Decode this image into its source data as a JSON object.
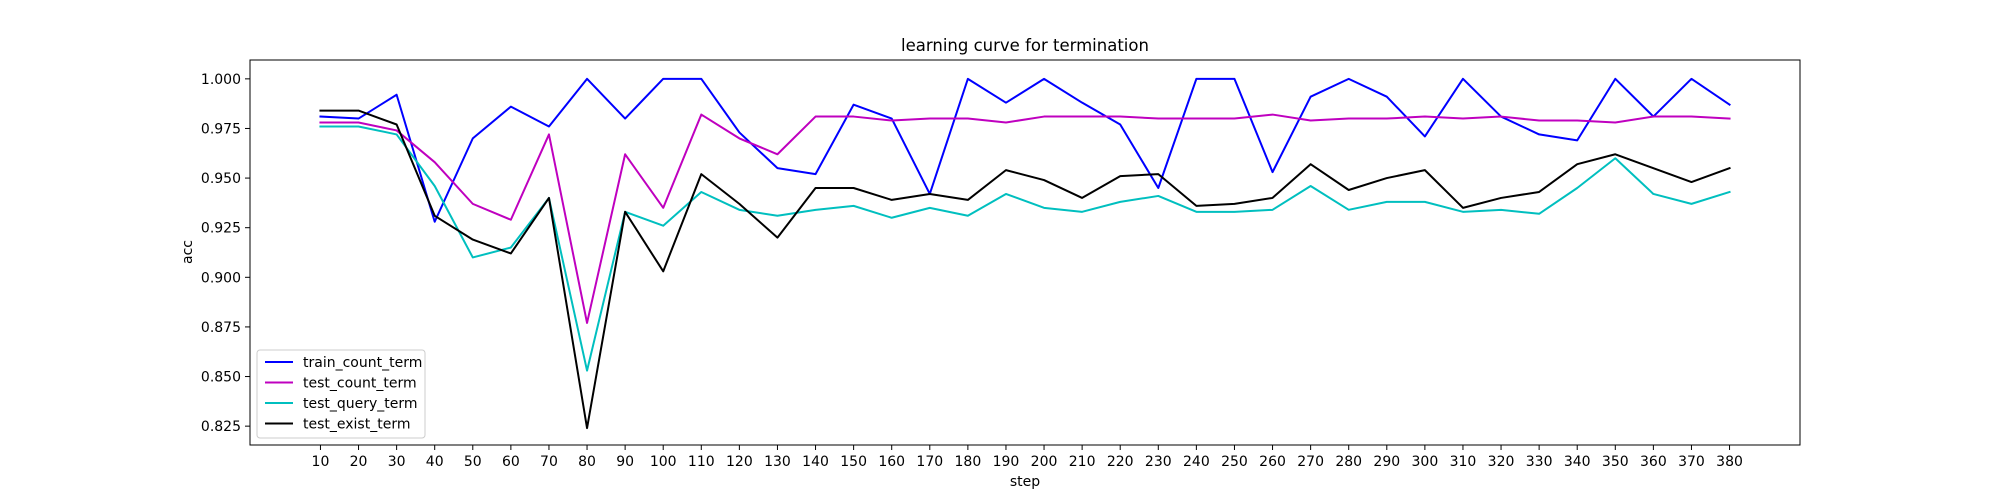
{
  "chart_data": {
    "type": "line",
    "title": "learning curve for termination",
    "xlabel": "step",
    "ylabel": "acc",
    "x": [
      10,
      20,
      30,
      40,
      50,
      60,
      70,
      80,
      90,
      100,
      110,
      120,
      130,
      140,
      150,
      160,
      170,
      180,
      190,
      200,
      210,
      220,
      230,
      240,
      250,
      260,
      270,
      280,
      290,
      300,
      310,
      320,
      330,
      340,
      350,
      360,
      370,
      380
    ],
    "xlim": [
      -8.5,
      398.5
    ],
    "ylim": [
      0.8155,
      1.0095
    ],
    "yticks": [
      0.825,
      0.85,
      0.875,
      0.9,
      0.925,
      0.95,
      0.975,
      1.0
    ],
    "ytick_labels": [
      "0.825",
      "0.850",
      "0.875",
      "0.900",
      "0.925",
      "0.950",
      "0.975",
      "1.000"
    ],
    "legend_position": "lower-left",
    "grid": false,
    "series": [
      {
        "name": "train_count_term",
        "color": "#0000ff",
        "values": [
          0.981,
          0.98,
          0.992,
          0.928,
          0.97,
          0.986,
          0.976,
          1.0,
          0.98,
          1.0,
          1.0,
          0.973,
          0.955,
          0.952,
          0.987,
          0.98,
          0.942,
          1.0,
          0.988,
          1.0,
          0.988,
          0.977,
          0.945,
          1.0,
          1.0,
          0.953,
          0.991,
          1.0,
          0.991,
          0.971,
          1.0,
          0.981,
          0.972,
          0.969,
          1.0,
          0.981,
          1.0,
          0.987
        ]
      },
      {
        "name": "test_count_term",
        "color": "#bf00bf",
        "values": [
          0.978,
          0.978,
          0.974,
          0.958,
          0.937,
          0.929,
          0.972,
          0.877,
          0.962,
          0.935,
          0.982,
          0.97,
          0.962,
          0.981,
          0.981,
          0.979,
          0.98,
          0.98,
          0.978,
          0.981,
          0.981,
          0.981,
          0.98,
          0.98,
          0.98,
          0.982,
          0.979,
          0.98,
          0.98,
          0.981,
          0.98,
          0.981,
          0.979,
          0.979,
          0.978,
          0.981,
          0.981,
          0.98
        ]
      },
      {
        "name": "test_query_term",
        "color": "#00bfbf",
        "values": [
          0.976,
          0.976,
          0.972,
          0.946,
          0.91,
          0.915,
          0.94,
          0.853,
          0.933,
          0.926,
          0.943,
          0.934,
          0.931,
          0.934,
          0.936,
          0.93,
          0.935,
          0.931,
          0.942,
          0.935,
          0.933,
          0.938,
          0.941,
          0.933,
          0.933,
          0.934,
          0.946,
          0.934,
          0.938,
          0.938,
          0.933,
          0.934,
          0.932,
          0.945,
          0.96,
          0.942,
          0.937,
          0.943
        ]
      },
      {
        "name": "test_exist_term",
        "color": "#000000",
        "values": [
          0.984,
          0.984,
          0.977,
          0.931,
          0.919,
          0.912,
          0.94,
          0.824,
          0.933,
          0.903,
          0.952,
          0.937,
          0.92,
          0.945,
          0.945,
          0.939,
          0.942,
          0.939,
          0.954,
          0.949,
          0.94,
          0.951,
          0.952,
          0.936,
          0.937,
          0.94,
          0.957,
          0.944,
          0.95,
          0.954,
          0.935,
          0.94,
          0.943,
          0.957,
          0.962,
          0.955,
          0.948,
          0.955
        ]
      }
    ]
  }
}
